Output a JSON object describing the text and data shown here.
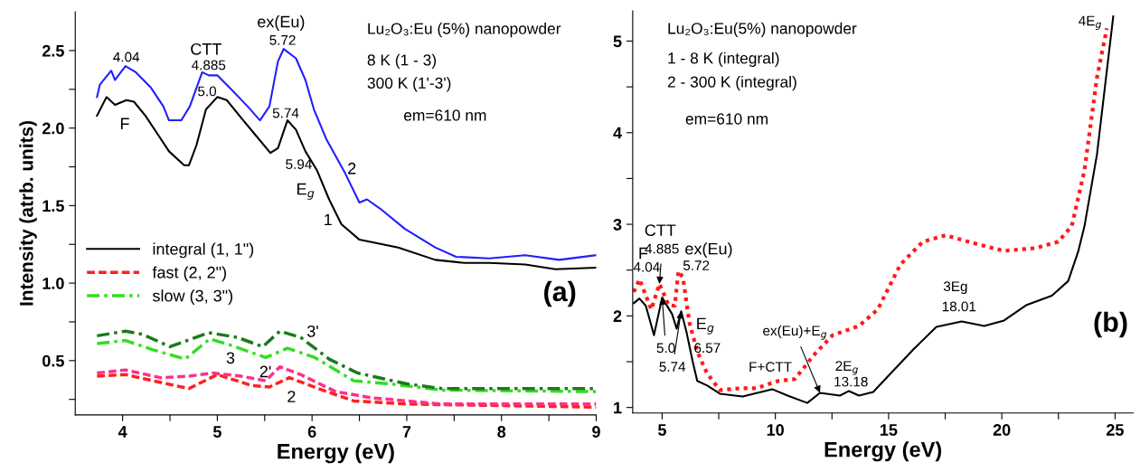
{
  "chart_data": [
    {
      "type": "line",
      "xlabel": "Energy (eV)",
      "ylabel": "Intensity (atrb. units)",
      "xlim": [
        3.5,
        9.0
      ],
      "ylim": [
        0.15,
        2.75
      ],
      "xticks": [
        4,
        {
          "value": 4.5,
          "label": null
        },
        5,
        {
          "value": 5.5,
          "label": null
        },
        6,
        {
          "value": 6.5,
          "label": null
        },
        7,
        {
          "value": 7.5,
          "label": null
        },
        8,
        {
          "value": 8.5,
          "label": null
        },
        9
      ],
      "yticks": [
        {
          "value": 0.25,
          "label": null
        },
        0.5,
        {
          "value": 0.75,
          "label": null
        },
        {
          "value": 1,
          "label": "1.0"
        },
        {
          "value": 1.25,
          "label": null
        },
        1.5,
        {
          "value": 1.75,
          "label": null
        },
        {
          "value": 2,
          "label": "2.0"
        },
        {
          "value": 2.25,
          "label": null
        },
        2.5
      ],
      "grid": false,
      "legend": "center left",
      "marker": "none",
      "series": [
        {
          "name": "integral (1, 1\")",
          "color": "#000000",
          "line_style": "solid",
          "x": [
            3.73,
            3.83,
            3.92,
            4.04,
            4.12,
            4.24,
            4.36,
            4.49,
            4.65,
            4.7,
            4.78,
            4.88,
            5.0,
            5.1,
            5.26,
            5.41,
            5.56,
            5.64,
            5.74,
            5.83,
            5.93,
            6.05,
            6.18,
            6.31,
            6.5,
            6.91,
            7.3,
            7.61,
            7.87,
            8.25,
            8.57,
            9.0
          ],
          "values": [
            2.08,
            2.2,
            2.15,
            2.18,
            2.17,
            2.08,
            1.97,
            1.85,
            1.76,
            1.76,
            1.89,
            2.12,
            2.2,
            2.18,
            2.06,
            1.95,
            1.84,
            1.87,
            2.05,
            1.99,
            1.85,
            1.73,
            1.54,
            1.38,
            1.28,
            1.23,
            1.15,
            1.13,
            1.13,
            1.12,
            1.09,
            1.1
          ]
        },
        {
          "color": "#1f1fff",
          "line_style": "solid",
          "x": [
            3.73,
            3.76,
            3.88,
            3.92,
            4.03,
            4.14,
            4.3,
            4.43,
            4.49,
            4.62,
            4.71,
            4.84,
            4.91,
            5.0,
            5.13,
            5.32,
            5.45,
            5.55,
            5.64,
            5.7,
            5.83,
            5.93,
            6.02,
            6.15,
            6.34,
            6.5,
            6.58,
            6.72,
            6.98,
            7.3,
            7.52,
            7.87,
            8.25,
            8.61,
            9.0
          ],
          "values": [
            2.2,
            2.28,
            2.37,
            2.31,
            2.4,
            2.36,
            2.26,
            2.14,
            2.05,
            2.05,
            2.14,
            2.36,
            2.34,
            2.34,
            2.26,
            2.14,
            2.05,
            2.14,
            2.43,
            2.51,
            2.45,
            2.31,
            2.12,
            1.93,
            1.72,
            1.52,
            1.54,
            1.48,
            1.35,
            1.23,
            1.17,
            1.16,
            1.18,
            1.15,
            1.18
          ]
        },
        {
          "name": "fast (2, 2\")",
          "color": "#ff2020",
          "line_style": "dashed",
          "x": [
            3.73,
            4.03,
            4.32,
            4.7,
            5.0,
            5.36,
            5.55,
            5.76,
            6.11,
            6.44,
            7.0,
            9.0
          ],
          "values": [
            0.4,
            0.41,
            0.37,
            0.32,
            0.41,
            0.34,
            0.33,
            0.39,
            0.31,
            0.24,
            0.22,
            0.2
          ]
        },
        {
          "color": "#ff2f8a",
          "line_style": "dashed",
          "x": [
            3.73,
            4.03,
            4.4,
            4.7,
            4.95,
            5.25,
            5.51,
            5.66,
            5.88,
            6.25,
            6.63,
            7.37,
            9.0
          ],
          "values": [
            0.42,
            0.44,
            0.39,
            0.4,
            0.42,
            0.4,
            0.37,
            0.46,
            0.41,
            0.3,
            0.26,
            0.22,
            0.22
          ]
        },
        {
          "name": "slow (3, 3\")",
          "color": "#33dd22",
          "line_style": "dashdot",
          "x": [
            3.73,
            4.03,
            4.32,
            4.66,
            4.92,
            5.14,
            5.51,
            5.74,
            6.03,
            6.44,
            6.82,
            7.37,
            9.0
          ],
          "values": [
            0.61,
            0.63,
            0.57,
            0.51,
            0.64,
            0.6,
            0.52,
            0.58,
            0.52,
            0.37,
            0.35,
            0.31,
            0.3
          ]
        },
        {
          "color": "#1a7a1a",
          "line_style": "dashdot",
          "x": [
            3.73,
            4.03,
            4.21,
            4.5,
            4.91,
            5.21,
            5.48,
            5.66,
            5.88,
            6.18,
            6.48,
            7.0,
            7.37,
            8.12,
            9.0
          ],
          "values": [
            0.66,
            0.69,
            0.67,
            0.59,
            0.68,
            0.65,
            0.59,
            0.69,
            0.65,
            0.51,
            0.42,
            0.35,
            0.32,
            0.32,
            0.32
          ]
        }
      ],
      "annotations": [
        "Lu₂O₃:Eu (5%) nanopowder",
        "8 K (1 - 3)",
        "300 K (1'-3')",
        "em=610 nm",
        "(a)",
        "4.04",
        "CTT",
        "4.885",
        "5.0",
        "ex(Eu)",
        "5.72",
        "5.74",
        "5.94",
        "E$_{g}$",
        "1",
        "2",
        "F",
        "3'",
        "3",
        "2'",
        "2"
      ]
    },
    {
      "type": "line",
      "xlabel": "Energy (eV)",
      "xlim": [
        3.7,
        25.8
      ],
      "ylim": [
        0.94,
        5.33
      ],
      "xticks": [
        5,
        {
          "value": 7.5,
          "label": null
        },
        10,
        {
          "value": 12.5,
          "label": null
        },
        15,
        {
          "value": 17.5,
          "label": null
        },
        20,
        {
          "value": 22.5,
          "label": null
        },
        25
      ],
      "yticks": [
        1,
        {
          "value": 1.5,
          "label": null
        },
        2,
        {
          "value": 2.5,
          "label": null
        },
        3,
        {
          "value": 3.5,
          "label": null
        },
        4,
        {
          "value": 4.5,
          "label": null
        },
        5
      ],
      "grid": false,
      "marker": "none",
      "series": [
        {
          "color": "#000000",
          "line_style": "solid",
          "x": [
            3.75,
            4.0,
            4.28,
            4.64,
            5.0,
            5.44,
            5.64,
            5.84,
            6.08,
            6.35,
            6.55,
            6.99,
            7.55,
            8.55,
            9.86,
            10.54,
            11.41,
            11.97,
            12.85,
            13.25,
            13.69,
            14.32,
            15.12,
            16.12,
            17.11,
            18.23,
            19.22,
            20.1,
            21.1,
            22.21,
            22.93,
            23.37,
            23.65,
            24.2,
            24.92
          ],
          "values": [
            2.14,
            2.19,
            2.11,
            1.79,
            2.2,
            2.02,
            1.86,
            2.05,
            1.82,
            1.5,
            1.29,
            1.24,
            1.15,
            1.12,
            1.2,
            1.13,
            1.05,
            1.16,
            1.13,
            1.18,
            1.13,
            1.17,
            1.38,
            1.64,
            1.88,
            1.94,
            1.89,
            1.95,
            2.12,
            2.22,
            2.38,
            2.7,
            2.98,
            3.76,
            5.27
          ]
        },
        {
          "color": "#ff1a1a",
          "line_style": "dotted",
          "x": [
            3.75,
            4.0,
            4.52,
            4.88,
            5.28,
            5.56,
            5.72,
            5.92,
            6.2,
            6.55,
            6.99,
            7.55,
            8.43,
            9.14,
            10.14,
            10.86,
            11.69,
            12.53,
            13.69,
            14.52,
            15.52,
            16.51,
            17.51,
            18.82,
            20.1,
            21.49,
            22.49,
            23.09,
            23.65,
            24.2,
            24.64
          ],
          "values": [
            2.26,
            2.4,
            2.07,
            2.35,
            2.12,
            2.11,
            2.49,
            2.42,
            1.93,
            1.61,
            1.37,
            1.19,
            1.21,
            1.21,
            1.29,
            1.31,
            1.57,
            1.79,
            1.89,
            2.07,
            2.56,
            2.81,
            2.88,
            2.79,
            2.71,
            2.74,
            2.81,
            2.98,
            3.59,
            4.6,
            5.14
          ]
        }
      ],
      "annotations": [
        "Lu₂O₃:Eu(5%) nanopowder",
        "1 - 8 K (integral)",
        "2 - 300 K (integral)",
        "em=610 nm",
        "(b)",
        "F",
        "4.04",
        "CTT",
        "ex(Eu)",
        "5.72",
        "E$_{g}$",
        "6.57",
        "F+CTT",
        "2E$_{g}$",
        "13.18",
        "3Eg",
        "18.01",
        "4E$_{g}$",
        {
          "text": "4.885",
          "x": 4.88,
          "y": 2.35
        },
        {
          "text": "5.0",
          "x": 5.0,
          "y": 2.2
        },
        {
          "text": "5.74",
          "x": 5.84,
          "y": 2.05
        },
        {
          "text": "ex(Eu)+E$_{g}$",
          "x": 11.97,
          "y": 1.16
        }
      ]
    }
  ]
}
